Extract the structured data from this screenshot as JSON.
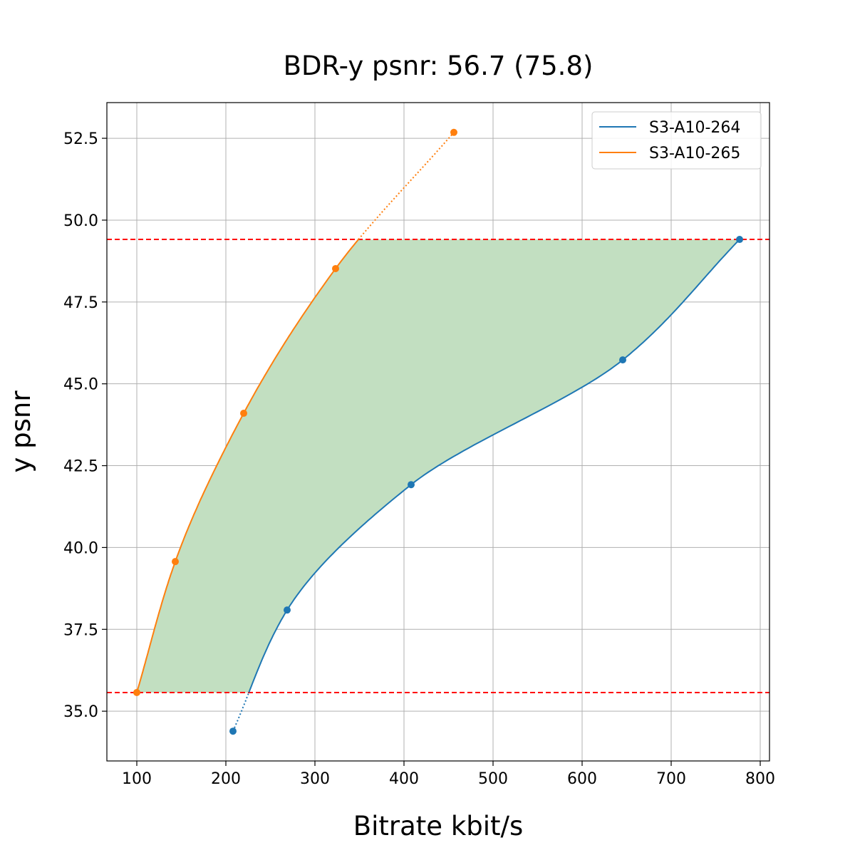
{
  "chart_data": {
    "type": "line",
    "title": "BDR-y psnr: 56.7 (75.8)",
    "xlabel": "Bitrate kbit/s",
    "ylabel": "y psnr",
    "xlim": [
      66.4,
      810.4
    ],
    "ylim": [
      33.48,
      53.59
    ],
    "xticks": [
      100,
      200,
      300,
      400,
      500,
      600,
      700,
      800
    ],
    "yticks": [
      "35.0",
      "37.5",
      "40.0",
      "42.5",
      "45.0",
      "47.5",
      "50.0",
      "52.5"
    ],
    "grid": true,
    "legend_position": "top-right",
    "series": [
      {
        "name": "S3-A10-264",
        "color": "#1f77b4",
        "x": [
          208,
          268.8,
          408,
          645.6,
          776.8
        ],
        "y": [
          34.39,
          38.09,
          41.92,
          45.73,
          49.41
        ]
      },
      {
        "name": "S3-A10-265",
        "color": "#ff7f0e",
        "x": [
          100,
          143.2,
          220,
          323.2,
          456
        ],
        "y": [
          35.57,
          39.57,
          44.1,
          48.52,
          52.68
        ]
      }
    ],
    "reference_lines": {
      "color": "#ff0000",
      "y": [
        35.57,
        49.41
      ]
    },
    "fill_color": "#c2dfc1"
  }
}
